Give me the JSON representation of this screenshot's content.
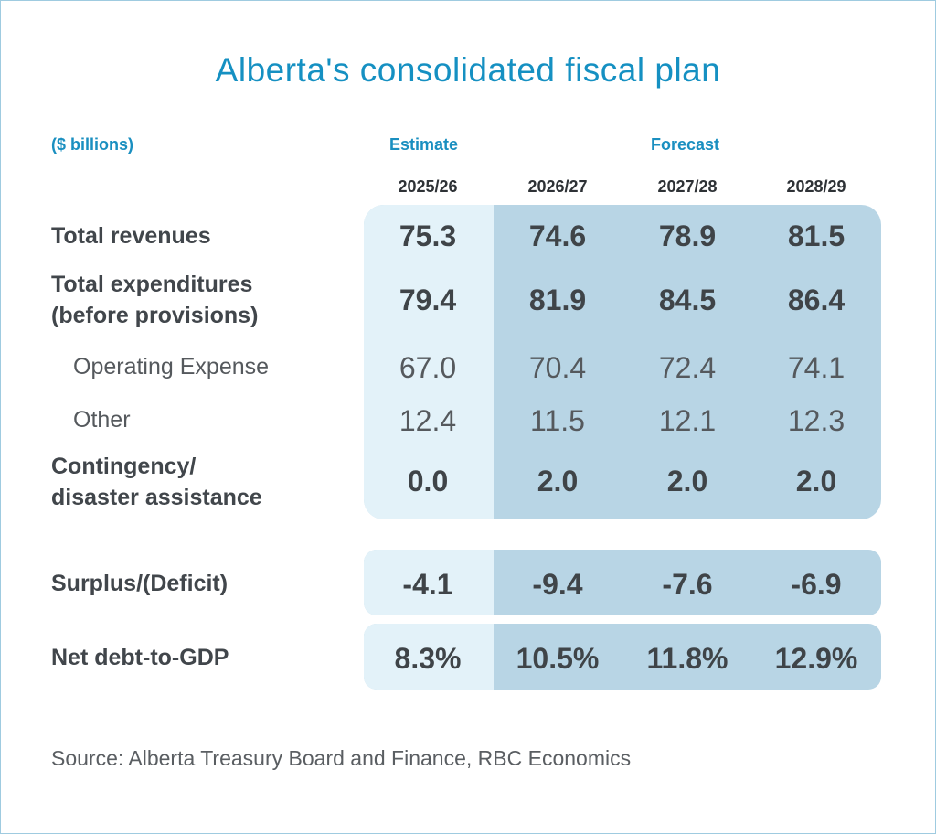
{
  "title": "Alberta's consolidated fiscal plan",
  "units": "($ billions)",
  "headers": {
    "estimate": "Estimate",
    "forecast": "Forecast"
  },
  "years": [
    "2025/26",
    "2026/27",
    "2027/28",
    "2028/29"
  ],
  "rows": [
    {
      "label": "Total revenues",
      "values": [
        "75.3",
        "74.6",
        "78.9",
        "81.5"
      ]
    },
    {
      "label": "Total expenditures",
      "label2": "(before provisions)",
      "values": [
        "79.4",
        "81.9",
        "84.5",
        "86.4"
      ]
    },
    {
      "label": "Operating Expense",
      "values": [
        "67.0",
        "70.4",
        "72.4",
        "74.1"
      ]
    },
    {
      "label": "Other",
      "values": [
        "12.4",
        "11.5",
        "12.1",
        "12.3"
      ]
    },
    {
      "label": "Contingency/",
      "label2": "disaster assistance",
      "values": [
        "0.0",
        "2.0",
        "2.0",
        "2.0"
      ]
    },
    {
      "label": "Surplus/(Deficit)",
      "values": [
        "-4.1",
        "-9.4",
        "-7.6",
        "-6.9"
      ]
    },
    {
      "label": "Net debt-to-GDP",
      "values": [
        "8.3%",
        "10.5%",
        "11.8%",
        "12.9%"
      ]
    }
  ],
  "source": "Source: Alberta Treasury Board and Finance, RBC Economics",
  "colors": {
    "title": "#1590c2",
    "estimate_bg": "#e3f2f9",
    "forecast_bg": "#b8d5e5"
  }
}
